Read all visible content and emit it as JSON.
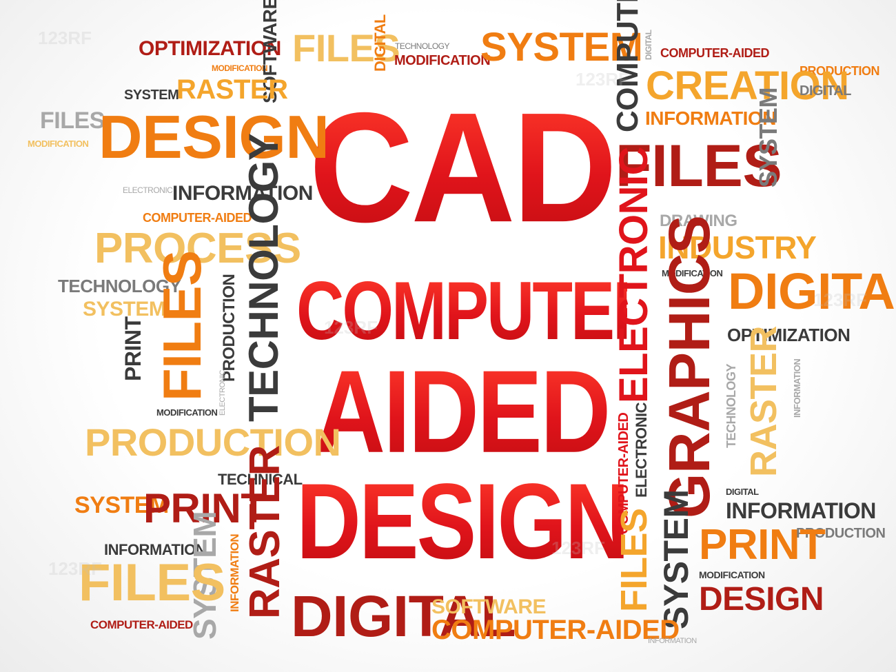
{
  "headline": {
    "line1": "CAD",
    "line2": "COMPUTER",
    "line3": "AIDED",
    "line4": "DESIGN"
  },
  "words": [
    "OPTIMIZATION",
    "MODIFICATION",
    "SOFTWARE",
    "FILES",
    "DIGITAL",
    "TECHNOLOGY",
    "MODIFICATION",
    "SYSTEM",
    "COMPUTER",
    "DIGITAL",
    "COMPUTER-AIDED",
    "PRODUCTION",
    "CREATION",
    "DIGITAL",
    "SYSTEM",
    "RASTER",
    "FILES",
    "MODIFICATION",
    "DESIGN",
    "INFORMATION",
    "FILES",
    "SYSTEM",
    "ELECTRONIC",
    "INFORMATION",
    "COMPUTER-AIDED",
    "DRAWING",
    "PROCESS",
    "TECHNOLOGY",
    "INDUSTRY",
    "ELECTRONIC",
    "MODIFICATION",
    "DIGITAL",
    "TECHNOLOGY",
    "PRODUCTION",
    "SYSTEM",
    "FILES",
    "GRAPHICS",
    "OPTIMIZATION",
    "PRINT",
    "ELECTRONIC",
    "TECHNOLOGY",
    "RASTER",
    "INFORMATION",
    "MODIFICATION",
    "COMPUTER-AIDED",
    "ELECTRONIC",
    "PRODUCTION",
    "TECHNICAL",
    "DIGITAL",
    "INFORMATION",
    "SYSTEM",
    "PRINT",
    "RASTER",
    "PRODUCTION",
    "INFORMATION",
    "SYSTEM",
    "PRINT",
    "FILES",
    "INFORMATION",
    "FILES",
    "MODIFICATION",
    "SYSTEM",
    "DESIGN",
    "COMPUTER-AIDED",
    "DIGITAL",
    "SOFTWARE",
    "COMPUTER-AIDED",
    "INFORMATION"
  ],
  "colors": {
    "red": "#e0141b",
    "dark_red": "#b01d16",
    "orange": "#f07d12",
    "orange_light": "#f4a52c",
    "yellow": "#f2c060",
    "dark_gray": "#3b3b3b",
    "gray": "#7a7a7a",
    "light_gray": "#a8a8a8"
  },
  "watermark": "123RF"
}
